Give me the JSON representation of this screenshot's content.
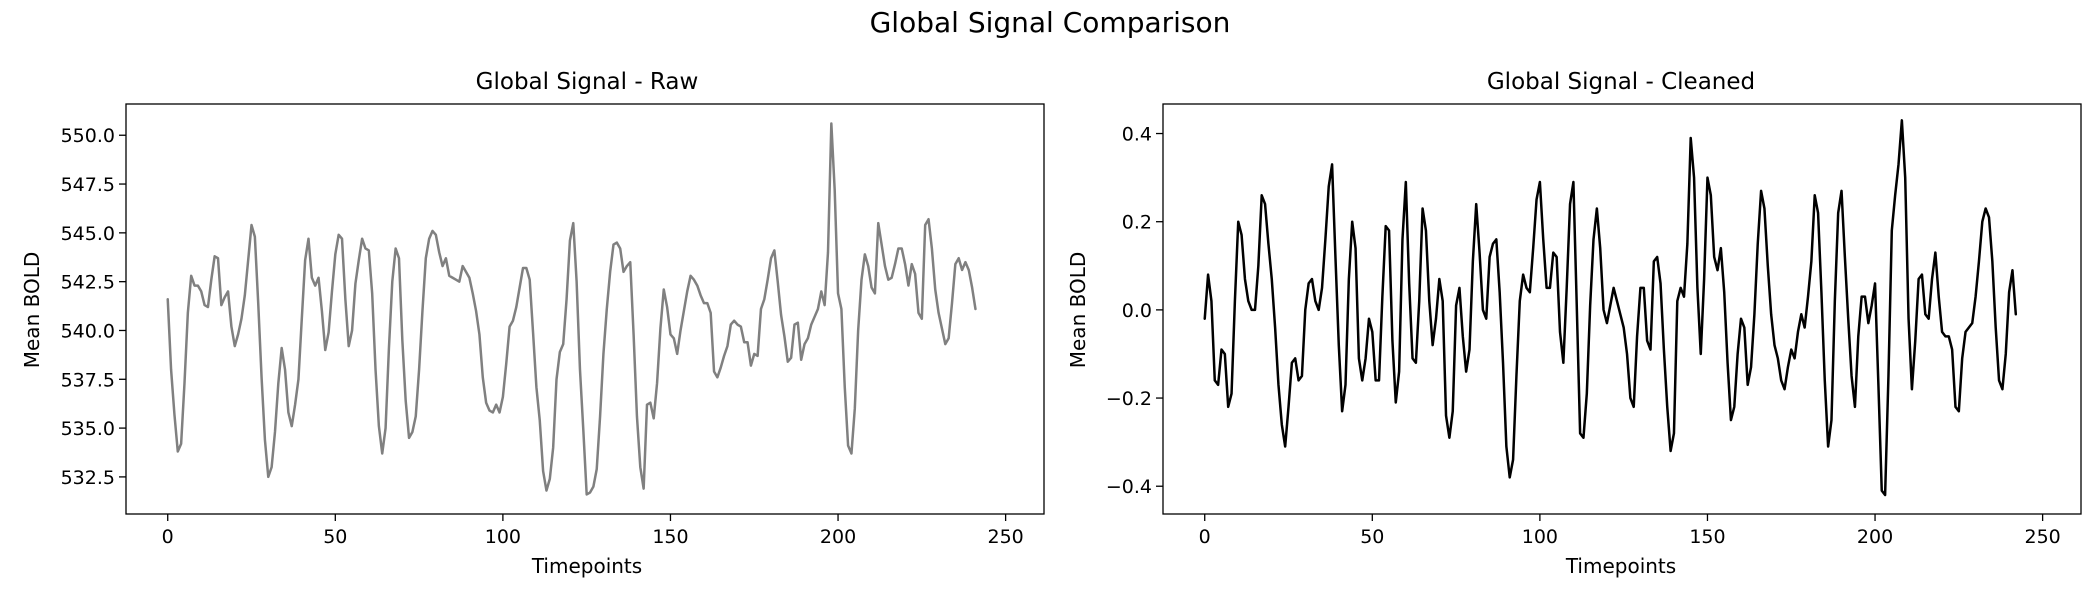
{
  "figure": {
    "suptitle": "Global Signal Comparison"
  },
  "chart_data": [
    {
      "type": "line",
      "title": "Global Signal - Raw",
      "xlabel": "Timepoints",
      "ylabel": "Mean BOLD",
      "xlim": [
        -12.45,
        261.45
      ],
      "ylim": [
        530.6,
        551.6
      ],
      "xticks": [
        0,
        50,
        100,
        150,
        200,
        250
      ],
      "yticks": [
        532.5,
        535.0,
        537.5,
        540.0,
        542.5,
        545.0,
        547.5,
        550.0
      ],
      "ytick_decimals": 1,
      "grid": false,
      "series": [
        {
          "color": "#808080",
          "x_start": 0,
          "x_step": 1,
          "values": [
            541.6,
            538.0,
            535.7,
            533.8,
            534.2,
            537.3,
            540.9,
            542.8,
            542.3,
            542.3,
            542.0,
            541.3,
            541.2,
            542.6,
            543.8,
            543.7,
            541.3,
            541.7,
            542.0,
            540.2,
            539.2,
            539.8,
            540.6,
            541.8,
            543.6,
            545.4,
            544.8,
            541.4,
            537.6,
            534.4,
            532.5,
            533.0,
            534.8,
            537.3,
            539.1,
            538.0,
            535.8,
            535.1,
            536.2,
            537.5,
            540.6,
            543.6,
            544.7,
            542.7,
            542.3,
            542.7,
            541.0,
            539.0,
            539.9,
            542.0,
            543.9,
            544.9,
            544.7,
            541.6,
            539.2,
            540.0,
            542.4,
            543.6,
            544.7,
            544.2,
            544.1,
            541.9,
            538.0,
            535.1,
            533.7,
            535.0,
            539.1,
            542.5,
            544.2,
            543.7,
            539.5,
            536.4,
            534.5,
            534.8,
            535.6,
            538.0,
            541.0,
            543.7,
            544.7,
            545.1,
            544.9,
            544.0,
            543.3,
            543.7,
            542.8,
            542.7,
            542.6,
            542.5,
            543.3,
            543.0,
            542.7,
            541.9,
            541.0,
            539.8,
            537.6,
            536.3,
            535.9,
            535.8,
            536.2,
            535.8,
            536.6,
            538.3,
            540.2,
            540.5,
            541.2,
            542.2,
            543.2,
            543.2,
            542.6,
            539.9,
            537.1,
            535.4,
            532.8,
            531.8,
            532.4,
            534.0,
            537.5,
            538.9,
            539.3,
            541.6,
            544.6,
            545.5,
            542.5,
            538.0,
            534.9,
            531.6,
            531.7,
            532.0,
            532.9,
            535.6,
            538.8,
            541.1,
            543.0,
            544.4,
            544.5,
            544.2,
            543.0,
            543.3,
            543.5,
            539.8,
            535.6,
            533.0,
            531.9,
            536.2,
            536.3,
            535.5,
            537.3,
            540.1,
            542.1,
            541.2,
            539.8,
            539.6,
            538.8,
            540.0,
            541.0,
            542.0,
            542.8,
            542.6,
            542.3,
            541.8,
            541.4,
            541.4,
            540.9,
            537.9,
            537.6,
            538.1,
            538.7,
            539.2,
            540.3,
            540.5,
            540.3,
            540.2,
            539.4,
            539.4,
            538.2,
            538.8,
            538.7,
            541.1,
            541.6,
            542.6,
            543.7,
            544.1,
            542.5,
            540.8,
            539.7,
            538.4,
            538.6,
            540.3,
            540.4,
            538.5,
            539.3,
            539.6,
            540.3,
            540.7,
            541.1,
            542.0,
            541.3,
            544.0,
            550.6,
            547.2,
            541.9,
            541.1,
            537.1,
            534.1,
            533.7,
            536.0,
            540.0,
            542.6,
            543.9,
            543.3,
            542.2,
            541.9,
            545.5,
            544.4,
            543.3,
            542.6,
            542.7,
            543.4,
            544.2,
            544.2,
            543.4,
            542.3,
            543.4,
            542.9,
            540.9,
            540.6,
            545.4,
            545.7,
            544.2,
            542.1,
            540.9,
            540.1,
            539.3,
            539.6,
            541.4,
            543.4,
            543.7,
            543.1,
            543.5,
            543.1,
            542.2,
            541.1
          ]
        }
      ]
    },
    {
      "type": "line",
      "title": "Global Signal - Cleaned",
      "xlabel": "Timepoints",
      "ylabel": "Mean BOLD",
      "xlim": [
        -12.45,
        261.45
      ],
      "ylim": [
        -0.463,
        0.467
      ],
      "xticks": [
        0,
        50,
        100,
        150,
        200,
        250
      ],
      "yticks": [
        -0.4,
        -0.2,
        0.0,
        0.2,
        0.4
      ],
      "ytick_decimals": 1,
      "grid": false,
      "series": [
        {
          "color": "#000000",
          "x_start": 0,
          "x_step": 1,
          "values": [
            -0.02,
            0.08,
            0.02,
            -0.16,
            -0.17,
            -0.09,
            -0.1,
            -0.22,
            -0.19,
            0.02,
            0.2,
            0.17,
            0.07,
            0.02,
            0.0,
            0.0,
            0.1,
            0.26,
            0.24,
            0.15,
            0.07,
            -0.04,
            -0.17,
            -0.26,
            -0.31,
            -0.22,
            -0.12,
            -0.11,
            -0.16,
            -0.15,
            0.0,
            0.06,
            0.07,
            0.02,
            0.0,
            0.05,
            0.16,
            0.28,
            0.33,
            0.12,
            -0.08,
            -0.23,
            -0.17,
            0.07,
            0.2,
            0.14,
            -0.11,
            -0.16,
            -0.11,
            -0.02,
            -0.05,
            -0.16,
            -0.16,
            0.03,
            0.19,
            0.18,
            -0.07,
            -0.21,
            -0.14,
            0.16,
            0.29,
            0.06,
            -0.11,
            -0.12,
            0.02,
            0.23,
            0.18,
            0.02,
            -0.08,
            -0.02,
            0.07,
            0.02,
            -0.24,
            -0.29,
            -0.23,
            0.01,
            0.05,
            -0.06,
            -0.14,
            -0.09,
            0.11,
            0.24,
            0.13,
            0.0,
            -0.02,
            0.12,
            0.15,
            0.16,
            0.04,
            -0.12,
            -0.31,
            -0.38,
            -0.34,
            -0.15,
            0.02,
            0.08,
            0.05,
            0.04,
            0.14,
            0.25,
            0.29,
            0.16,
            0.05,
            0.05,
            0.13,
            0.12,
            -0.05,
            -0.12,
            0.05,
            0.24,
            0.29,
            0.01,
            -0.28,
            -0.29,
            -0.19,
            0.01,
            0.16,
            0.23,
            0.14,
            0.0,
            -0.03,
            0.01,
            0.05,
            0.02,
            -0.01,
            -0.04,
            -0.1,
            -0.2,
            -0.22,
            -0.06,
            0.05,
            0.05,
            -0.07,
            -0.09,
            0.11,
            0.12,
            0.06,
            -0.09,
            -0.22,
            -0.32,
            -0.28,
            0.02,
            0.05,
            0.03,
            0.15,
            0.39,
            0.3,
            0.05,
            -0.1,
            0.07,
            0.3,
            0.26,
            0.12,
            0.09,
            0.14,
            0.04,
            -0.12,
            -0.25,
            -0.22,
            -0.1,
            -0.02,
            -0.04,
            -0.17,
            -0.13,
            -0.01,
            0.15,
            0.27,
            0.23,
            0.1,
            -0.01,
            -0.08,
            -0.11,
            -0.16,
            -0.18,
            -0.13,
            -0.09,
            -0.11,
            -0.05,
            -0.01,
            -0.04,
            0.03,
            0.11,
            0.26,
            0.22,
            0.04,
            -0.16,
            -0.31,
            -0.25,
            0.02,
            0.22,
            0.27,
            0.12,
            -0.02,
            -0.15,
            -0.22,
            -0.06,
            0.03,
            0.03,
            -0.03,
            0.01,
            0.06,
            -0.17,
            -0.41,
            -0.42,
            -0.15,
            0.18,
            0.26,
            0.33,
            0.43,
            0.3,
            -0.02,
            -0.18,
            -0.07,
            0.07,
            0.08,
            -0.01,
            -0.02,
            0.07,
            0.13,
            0.03,
            -0.05,
            -0.06,
            -0.06,
            -0.09,
            -0.22,
            -0.23,
            -0.11,
            -0.05,
            -0.04,
            -0.03,
            0.03,
            0.11,
            0.2,
            0.23,
            0.21,
            0.11,
            -0.04,
            -0.16,
            -0.18,
            -0.1,
            0.04,
            0.09,
            -0.01
          ]
        }
      ]
    }
  ]
}
